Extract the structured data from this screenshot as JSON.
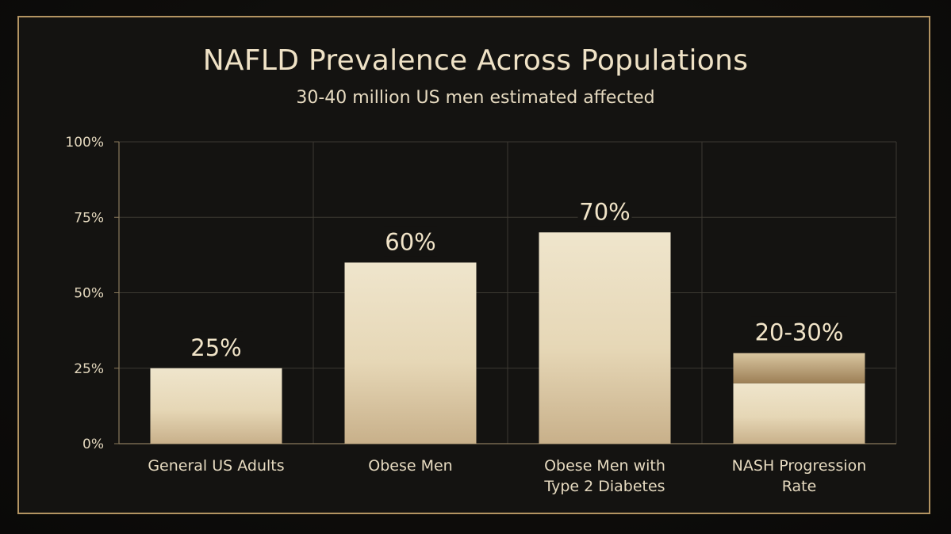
{
  "chart_data": {
    "type": "bar",
    "title": "NAFLD Prevalence Across Populations",
    "subtitle": "30-40 million US men estimated affected",
    "xlabel": "",
    "ylabel": "",
    "ylim": [
      0,
      100
    ],
    "yticks": [
      0,
      25,
      50,
      75,
      100
    ],
    "ytick_labels": [
      "0%",
      "25%",
      "50%",
      "75%",
      "100%"
    ],
    "grid": true,
    "categories": [
      [
        "General US Adults"
      ],
      [
        "Obese Men"
      ],
      [
        "Obese Men with",
        "Type 2 Diabetes"
      ],
      [
        "NASH Progression",
        "Rate"
      ]
    ],
    "values": [
      25,
      60,
      70,
      30
    ],
    "range_low": [
      null,
      null,
      null,
      20
    ],
    "value_labels": [
      "25%",
      "60%",
      "70%",
      "20-30%"
    ]
  },
  "colors": {
    "bar_top": "#efe5cc",
    "bar_bottom": "#c8b08a",
    "range_top": "#d9c6a0",
    "range_bottom": "#9c7f56",
    "grid": "#3d3a33",
    "axis": "#8a7a5c",
    "frame": "#b39462"
  }
}
